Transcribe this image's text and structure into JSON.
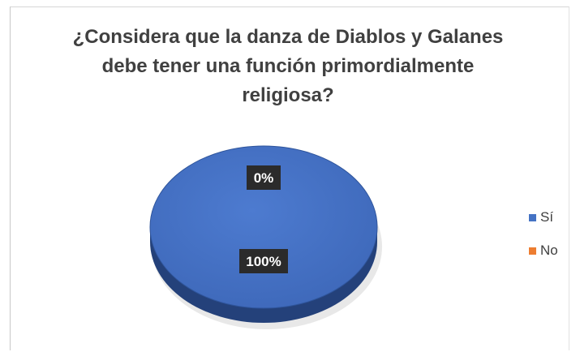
{
  "chart_data": {
    "type": "pie",
    "title": "¿Considera que la danza de Diablos y Galanes debe tener una función primordialmente religiosa?",
    "title_lines": [
      "¿Considera que la danza de Diablos y Galanes",
      "debe tener una función primordialmente",
      "religiosa?"
    ],
    "categories": [
      "Sí",
      "No"
    ],
    "values": [
      100,
      0
    ],
    "data_labels": [
      "100%",
      "0%"
    ],
    "colors": [
      "#4472C4",
      "#ED7D31"
    ],
    "legend_position": "right",
    "style": "3d"
  }
}
